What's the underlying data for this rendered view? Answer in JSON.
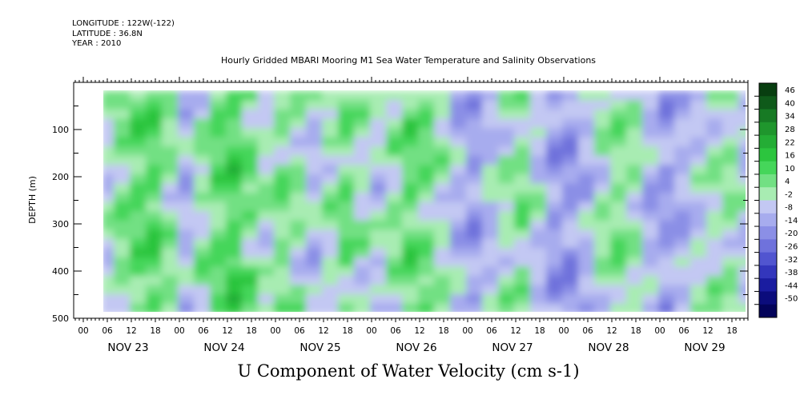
{
  "header": {
    "longitude": "LONGITUDE : 122W(-122)",
    "latitude": "LATITUDE : 36.8N",
    "year": "YEAR : 2010"
  },
  "chart_data": {
    "type": "heatmap",
    "title": "Hourly Gridded MBARI Mooring M1 Sea Water Temperature and Salinity Observations",
    "bottom_title": "U Component of Water Velocity (cm s-1)",
    "ylabel": "DEPTH (m)",
    "ylim": [
      500,
      0
    ],
    "y_ticks": [
      "100",
      "200",
      "300",
      "400",
      "500"
    ],
    "x_hour_ticks": [
      "00",
      "06",
      "12",
      "18",
      "00",
      "06",
      "12",
      "18",
      "00",
      "06",
      "12",
      "18",
      "00",
      "06",
      "12",
      "18",
      "00",
      "06",
      "12",
      "18",
      "00",
      "06",
      "12",
      "18",
      "00",
      "06",
      "12",
      "18"
    ],
    "x_day_labels": [
      "NOV 23",
      "NOV 24",
      "NOV 25",
      "NOV 26",
      "NOV 27",
      "NOV 28",
      "NOV 29"
    ],
    "data_time_range_hours_from_nov23_00": [
      5,
      167
    ],
    "data_depth_range_m": [
      20,
      490
    ],
    "colorbar_labels": [
      "46",
      "40",
      "34",
      "28",
      "22",
      "16",
      "10",
      "4",
      "-2",
      "-8",
      "-14",
      "-20",
      "-26",
      "-32",
      "-38",
      "-44",
      "-50"
    ],
    "colorbar_range": [
      -50,
      50
    ],
    "colorbar_colors": [
      "#083e10",
      "#0f5a1a",
      "#177a24",
      "#1f962d",
      "#24ad35",
      "#2cc53e",
      "#45d65a",
      "#72e083",
      "#a8ecb2",
      "#c3c8f3",
      "#a7acee",
      "#8b8fe6",
      "#6f72dc",
      "#5155d0",
      "#3336bc",
      "#1a1ca0",
      "#0b0c7c",
      "#03035a"
    ],
    "column_mean_u": [
      {
        "hour": 5,
        "u": 0
      },
      {
        "hour": 8,
        "u": 6
      },
      {
        "hour": 12,
        "u": 10
      },
      {
        "hour": 16,
        "u": 12
      },
      {
        "hour": 20,
        "u": 4
      },
      {
        "hour": 24,
        "u": -6
      },
      {
        "hour": 28,
        "u": 3
      },
      {
        "hour": 32,
        "u": 10
      },
      {
        "hour": 36,
        "u": 14
      },
      {
        "hour": 40,
        "u": 8
      },
      {
        "hour": 44,
        "u": 2
      },
      {
        "hour": 48,
        "u": 6
      },
      {
        "hour": 52,
        "u": 3
      },
      {
        "hour": 56,
        "u": -4
      },
      {
        "hour": 60,
        "u": 2
      },
      {
        "hour": 64,
        "u": 8
      },
      {
        "hour": 68,
        "u": 2
      },
      {
        "hour": 72,
        "u": -2
      },
      {
        "hour": 76,
        "u": 4
      },
      {
        "hour": 80,
        "u": 10
      },
      {
        "hour": 84,
        "u": 8
      },
      {
        "hour": 88,
        "u": 2
      },
      {
        "hour": 92,
        "u": -6
      },
      {
        "hour": 96,
        "u": -10
      },
      {
        "hour": 100,
        "u": -4
      },
      {
        "hour": 104,
        "u": 2
      },
      {
        "hour": 108,
        "u": 6
      },
      {
        "hour": 112,
        "u": -2
      },
      {
        "hour": 116,
        "u": -10
      },
      {
        "hour": 120,
        "u": -12
      },
      {
        "hour": 124,
        "u": -6
      },
      {
        "hour": 128,
        "u": 2
      },
      {
        "hour": 132,
        "u": 6
      },
      {
        "hour": 136,
        "u": 2
      },
      {
        "hour": 140,
        "u": -6
      },
      {
        "hour": 144,
        "u": -10
      },
      {
        "hour": 148,
        "u": -6
      },
      {
        "hour": 152,
        "u": -2
      },
      {
        "hour": 156,
        "u": 2
      },
      {
        "hour": 160,
        "u": 4
      },
      {
        "hour": 164,
        "u": -2
      },
      {
        "hour": 167,
        "u": -4
      }
    ]
  }
}
